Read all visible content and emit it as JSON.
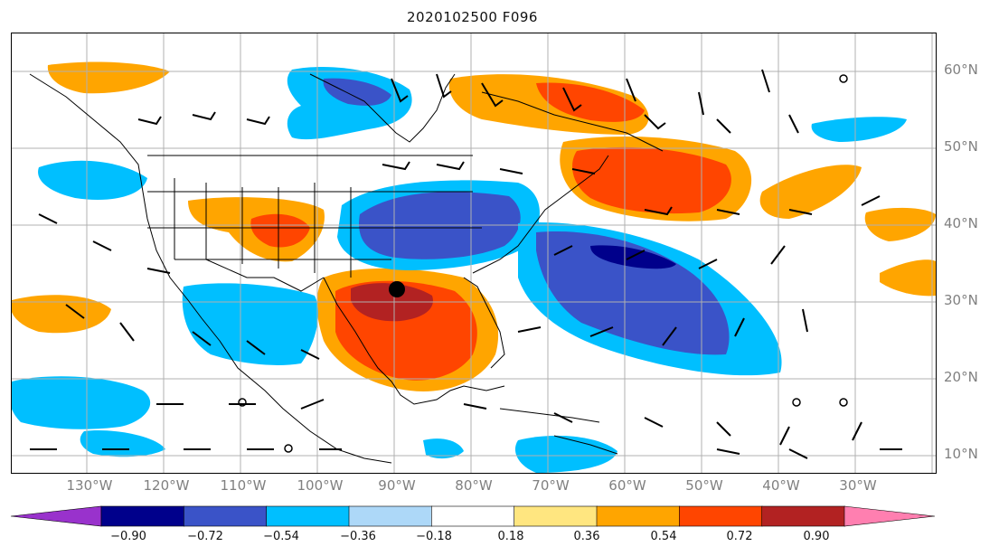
{
  "title": "2020102500 F096",
  "lat_labels": [
    "60°N",
    "50°N",
    "40°N",
    "30°N",
    "20°N",
    "10°N"
  ],
  "lon_labels": [
    "130°W",
    "120°W",
    "110°W",
    "100°W",
    "90°W",
    "80°W",
    "70°W",
    "60°W",
    "50°W",
    "40°W",
    "30°W"
  ],
  "colorbar": {
    "ticks": [
      "−0.90",
      "−0.72",
      "−0.54",
      "−0.36",
      "−0.18",
      "0.18",
      "0.36",
      "0.54",
      "0.72",
      "0.90"
    ],
    "colors": [
      "#9932cc",
      "#00008b",
      "#3a53c8",
      "#00bfff",
      "#add8f8",
      "#ffffff",
      "#ffe680",
      "#ffa500",
      "#ff4500",
      "#b22222",
      "#ff7fb0"
    ]
  }
}
